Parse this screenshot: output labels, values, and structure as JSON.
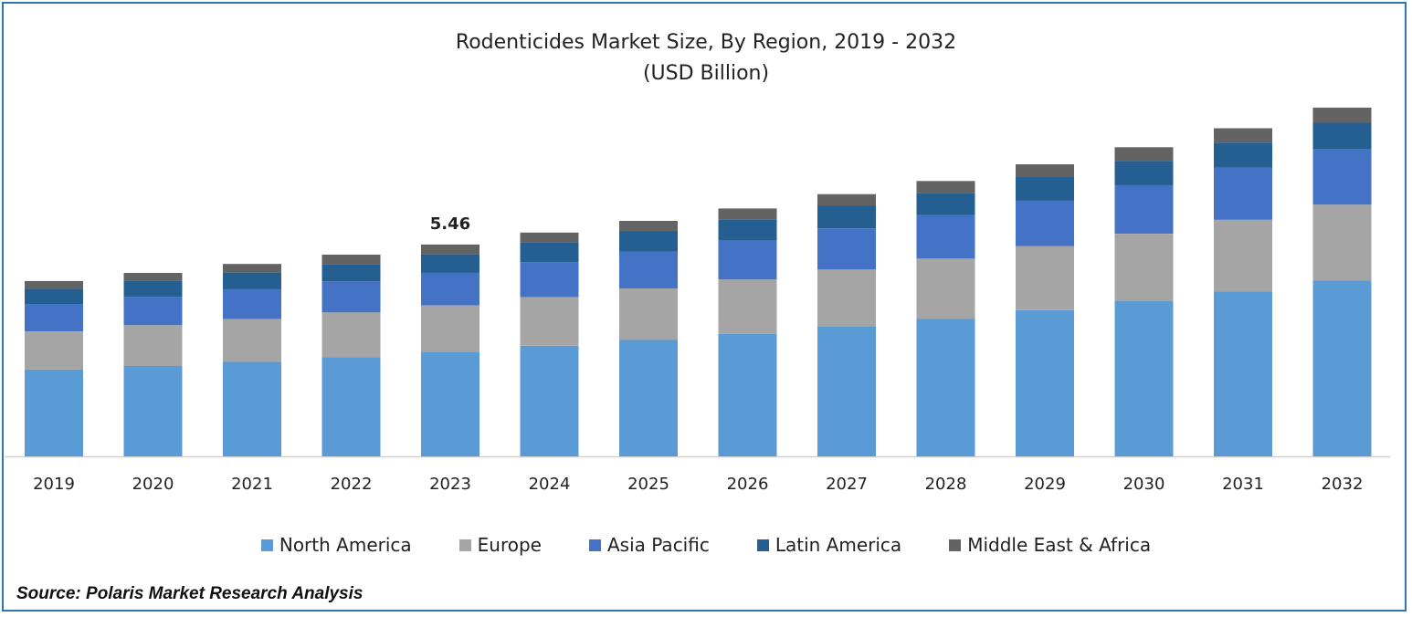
{
  "chart_data": {
    "type": "bar",
    "stacked": true,
    "title": "Rodenticides Market Size, By Region, 2019 - 2032",
    "subtitle": "(USD Billion)",
    "categories": [
      "2019",
      "2020",
      "2021",
      "2022",
      "2023",
      "2024",
      "2025",
      "2026",
      "2027",
      "2028",
      "2029",
      "2030",
      "2031",
      "2032"
    ],
    "series": [
      {
        "name": "North America",
        "color": "#5b9bd5",
        "values": [
          2.24,
          2.33,
          2.44,
          2.56,
          2.7,
          2.85,
          3.0,
          3.16,
          3.35,
          3.55,
          3.77,
          4.0,
          4.25,
          4.53
        ]
      },
      {
        "name": "Europe",
        "color": "#a5a5a5",
        "values": [
          0.98,
          1.05,
          1.1,
          1.15,
          1.19,
          1.26,
          1.33,
          1.4,
          1.47,
          1.55,
          1.65,
          1.74,
          1.85,
          1.96
        ]
      },
      {
        "name": "Asia Pacific",
        "color": "#4472c4",
        "values": [
          0.7,
          0.73,
          0.77,
          0.8,
          0.85,
          0.9,
          0.95,
          1.0,
          1.06,
          1.12,
          1.18,
          1.26,
          1.34,
          1.43
        ]
      },
      {
        "name": "Latin America",
        "color": "#255e91",
        "values": [
          0.4,
          0.41,
          0.43,
          0.45,
          0.47,
          0.5,
          0.52,
          0.55,
          0.58,
          0.56,
          0.6,
          0.62,
          0.65,
          0.68
        ]
      },
      {
        "name": "Middle East & Africa",
        "color": "#636363",
        "values": [
          0.2,
          0.21,
          0.22,
          0.24,
          0.25,
          0.26,
          0.27,
          0.28,
          0.3,
          0.32,
          0.33,
          0.35,
          0.37,
          0.39
        ]
      }
    ],
    "annotations": [
      {
        "category": "2023",
        "label": "5.46"
      }
    ],
    "ylim": [
      0,
      10
    ],
    "grid": false,
    "legend_position": "bottom"
  },
  "source": "Source: Polaris Market Research Analysis"
}
